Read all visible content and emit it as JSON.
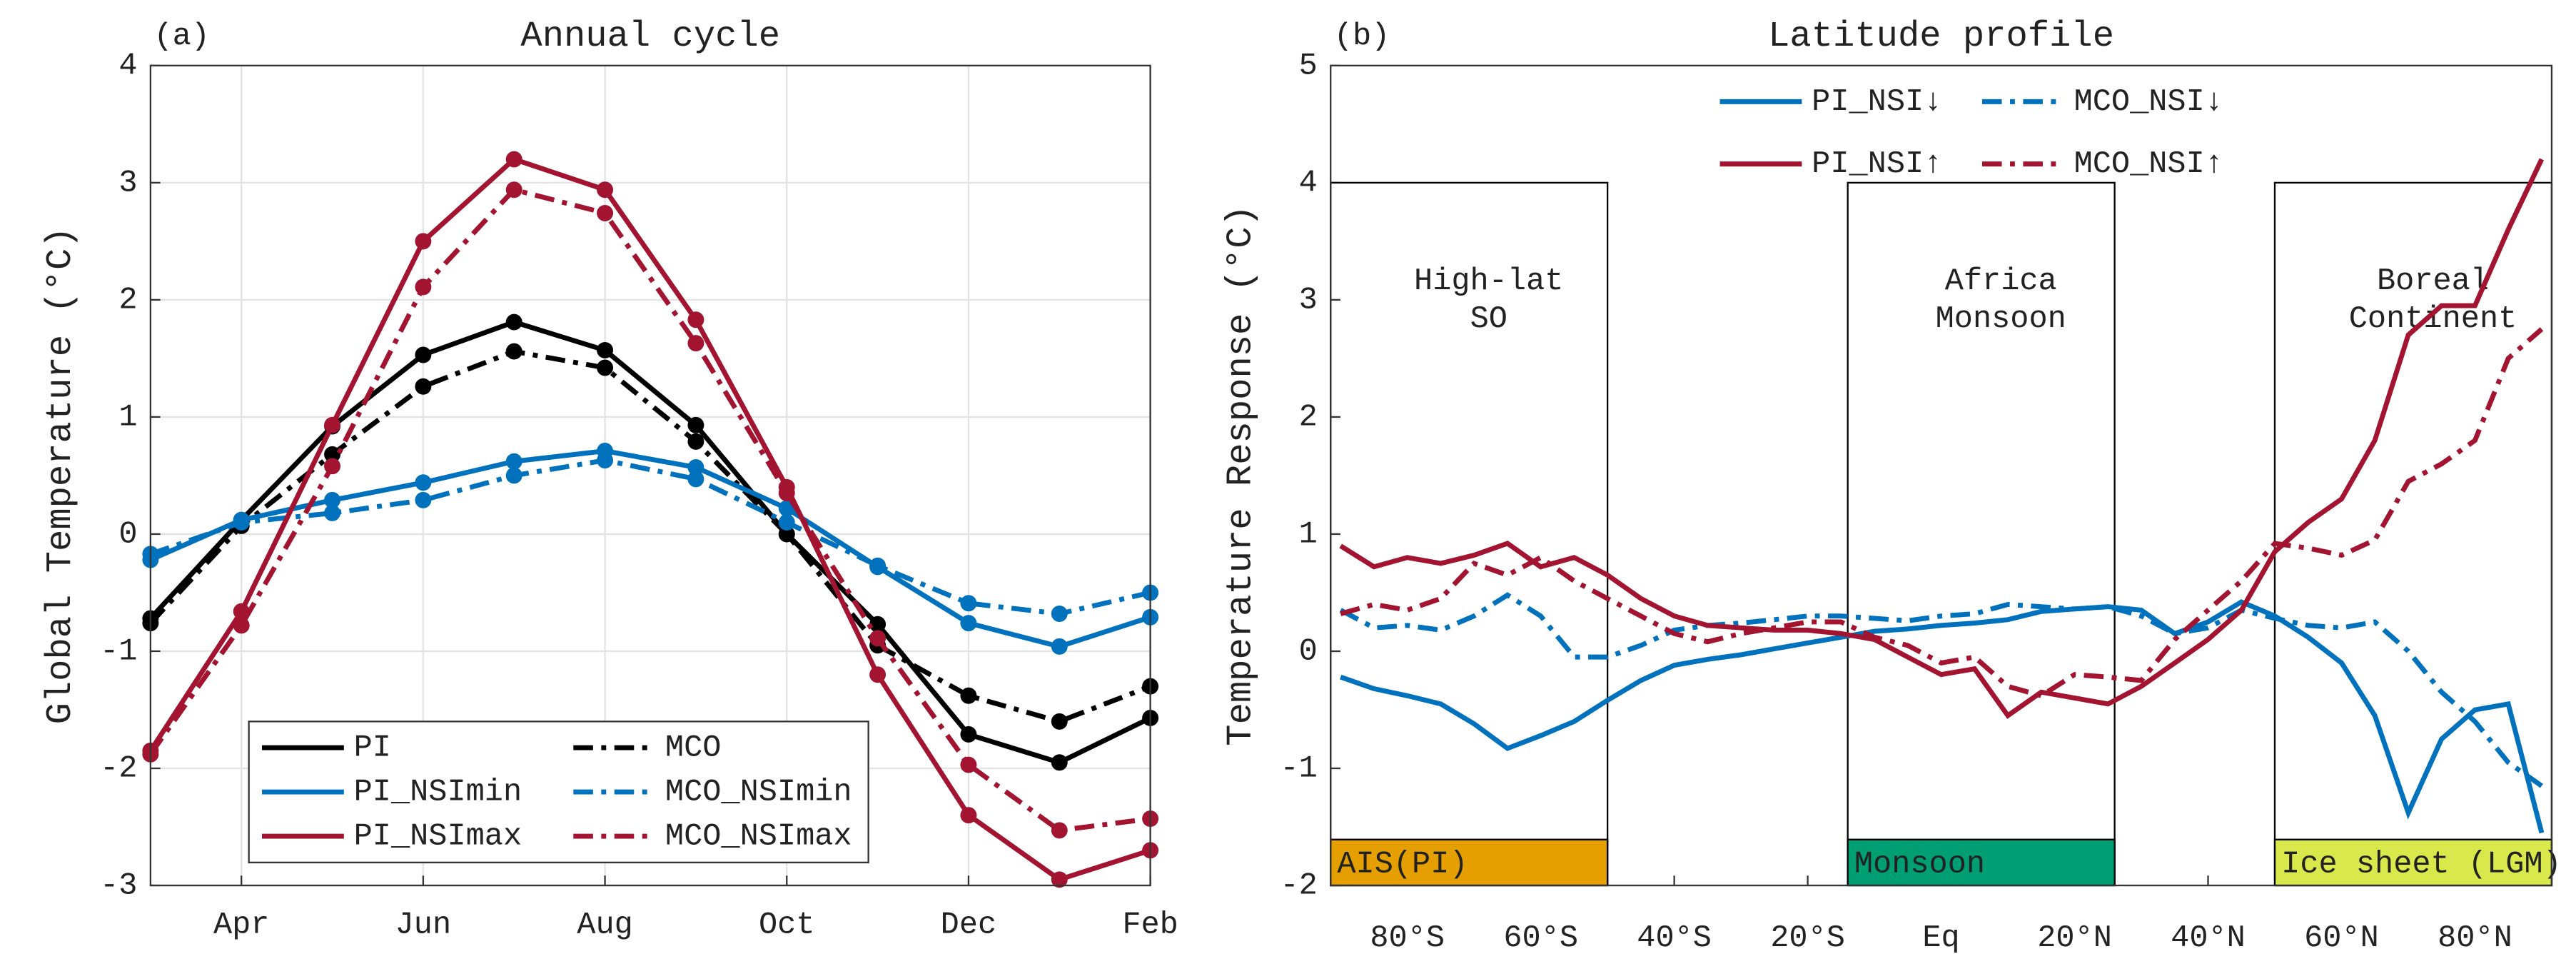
{
  "chart_data": [
    {
      "type": "line",
      "panel": "(a)",
      "title": "Annual cycle",
      "ylabel": "Global Temperature (°C)",
      "categories": [
        null,
        "Apr",
        null,
        "Jun",
        null,
        "Aug",
        null,
        "Oct",
        null,
        "Dec",
        null,
        "Feb"
      ],
      "ylim": [
        -3,
        4
      ],
      "yticks": [
        -3,
        -2,
        -1,
        0,
        1,
        2,
        3,
        4
      ],
      "grid": true,
      "markers": true,
      "legend": "lower center",
      "series": [
        {
          "name": "PI",
          "color": "#000000",
          "dash": "solid",
          "values": [
            -0.72,
            0.12,
            0.92,
            1.53,
            1.81,
            1.57,
            0.93,
            0.0,
            -0.77,
            -1.71,
            -1.95,
            -1.57
          ]
        },
        {
          "name": "MCO",
          "color": "#000000",
          "dash": "dashdot",
          "values": [
            -0.76,
            0.07,
            0.68,
            1.26,
            1.56,
            1.42,
            0.79,
            0.0,
            -0.95,
            -1.38,
            -1.6,
            -1.3
          ]
        },
        {
          "name": "PI_NSImin",
          "color": "#0072bd",
          "dash": "solid",
          "values": [
            -0.22,
            0.12,
            0.29,
            0.44,
            0.62,
            0.71,
            0.57,
            0.22,
            -0.28,
            -0.76,
            -0.96,
            -0.71
          ]
        },
        {
          "name": "MCO_NSImin",
          "color": "#0072bd",
          "dash": "dashdot",
          "values": [
            -0.17,
            0.1,
            0.18,
            0.29,
            0.5,
            0.63,
            0.47,
            0.1,
            -0.27,
            -0.59,
            -0.68,
            -0.5
          ]
        },
        {
          "name": "PI_NSImax",
          "color": "#a2142f",
          "dash": "solid",
          "values": [
            -1.85,
            -0.66,
            0.93,
            2.5,
            3.2,
            2.94,
            1.83,
            0.4,
            -1.2,
            -2.4,
            -2.95,
            -2.7
          ]
        },
        {
          "name": "MCO_NSImax",
          "color": "#a2142f",
          "dash": "dashdot",
          "values": [
            -1.88,
            -0.78,
            0.58,
            2.11,
            2.94,
            2.74,
            1.63,
            0.35,
            -0.89,
            -1.97,
            -2.53,
            -2.43
          ]
        }
      ]
    },
    {
      "type": "line",
      "panel": "(b)",
      "title": "Latitude profile",
      "ylabel": "Temperature Response (°C)",
      "x": [
        -90,
        -85,
        -80,
        -75,
        -70,
        -65,
        -60,
        -55,
        -50,
        -45,
        -40,
        -35,
        -30,
        -25,
        -20,
        -15,
        -10,
        -5,
        0,
        5,
        10,
        15,
        20,
        25,
        30,
        35,
        40,
        45,
        50,
        55,
        60,
        65,
        70,
        75,
        80,
        85,
        90
      ],
      "xlim": [
        -91.5,
        91.5
      ],
      "xticks": [
        {
          "value": -80,
          "label": "80°S"
        },
        {
          "value": -60,
          "label": "60°S"
        },
        {
          "value": -40,
          "label": "40°S"
        },
        {
          "value": -20,
          "label": "20°S"
        },
        {
          "value": 0,
          "label": "Eq"
        },
        {
          "value": 20,
          "label": "20°N"
        },
        {
          "value": 40,
          "label": "40°N"
        },
        {
          "value": 60,
          "label": "60°N"
        },
        {
          "value": 80,
          "label": "80°N"
        }
      ],
      "ylim": [
        -2,
        5
      ],
      "yticks": [
        -2,
        -1,
        0,
        1,
        2,
        3,
        4,
        5
      ],
      "grid": false,
      "markers": false,
      "legend": "upper center",
      "region_top": 4,
      "regions": [
        {
          "x": [
            -91.5,
            -50
          ],
          "label": [
            "High-lat",
            "SO"
          ],
          "tag": "AIS(PI)",
          "color": "#e69f00"
        },
        {
          "x": [
            -14,
            26
          ],
          "label": [
            "Africa",
            "Monsoon"
          ],
          "tag": "Monsoon",
          "color": "#009e73"
        },
        {
          "x": [
            50,
            91.5
          ],
          "label": [
            "Boreal",
            "Continent"
          ],
          "tag": "Ice sheet (LGM)",
          "color": "#d9e84a"
        }
      ],
      "series": [
        {
          "name": "PI_NSI↓",
          "color": "#0072bd",
          "dash": "solid",
          "values": [
            -0.22,
            -0.32,
            -0.38,
            -0.45,
            -0.62,
            -0.83,
            -0.72,
            -0.6,
            -0.42,
            -0.25,
            -0.12,
            -0.07,
            -0.03,
            0.02,
            0.07,
            0.12,
            0.17,
            0.19,
            0.22,
            0.24,
            0.27,
            0.34,
            0.36,
            0.38,
            0.35,
            0.15,
            0.25,
            0.42,
            0.3,
            0.12,
            -0.1,
            -0.55,
            -1.38,
            -0.75,
            -0.5,
            -0.45,
            -1.55
          ]
        },
        {
          "name": "MCO_NSI↓",
          "color": "#0072bd",
          "dash": "dashdot",
          "values": [
            0.35,
            0.2,
            0.22,
            0.18,
            0.3,
            0.48,
            0.3,
            -0.05,
            -0.05,
            0.05,
            0.18,
            0.22,
            0.24,
            0.27,
            0.3,
            0.3,
            0.28,
            0.26,
            0.3,
            0.32,
            0.4,
            0.38,
            0.36,
            0.38,
            0.3,
            0.15,
            0.2,
            0.35,
            0.28,
            0.22,
            0.2,
            0.25,
            0.0,
            -0.35,
            -0.6,
            -0.95,
            -1.15
          ]
        },
        {
          "name": "PI_NSI↑",
          "color": "#a2142f",
          "dash": "solid",
          "values": [
            0.9,
            0.72,
            0.8,
            0.75,
            0.82,
            0.92,
            0.72,
            0.8,
            0.65,
            0.45,
            0.3,
            0.22,
            0.2,
            0.18,
            0.18,
            0.15,
            0.1,
            -0.05,
            -0.2,
            -0.15,
            -0.55,
            -0.35,
            -0.4,
            -0.45,
            -0.3,
            -0.1,
            0.1,
            0.35,
            0.85,
            1.1,
            1.3,
            1.8,
            2.7,
            2.95,
            2.95,
            3.6,
            4.2
          ]
        },
        {
          "name": "MCO_NSI↑",
          "color": "#a2142f",
          "dash": "dashdot",
          "values": [
            0.32,
            0.4,
            0.35,
            0.45,
            0.75,
            0.65,
            0.8,
            0.6,
            0.45,
            0.3,
            0.15,
            0.08,
            0.15,
            0.2,
            0.25,
            0.25,
            0.12,
            0.05,
            -0.1,
            -0.05,
            -0.3,
            -0.38,
            -0.2,
            -0.22,
            -0.25,
            0.1,
            0.35,
            0.6,
            0.92,
            0.88,
            0.82,
            0.95,
            1.45,
            1.6,
            1.8,
            2.5,
            2.75
          ]
        }
      ]
    }
  ]
}
